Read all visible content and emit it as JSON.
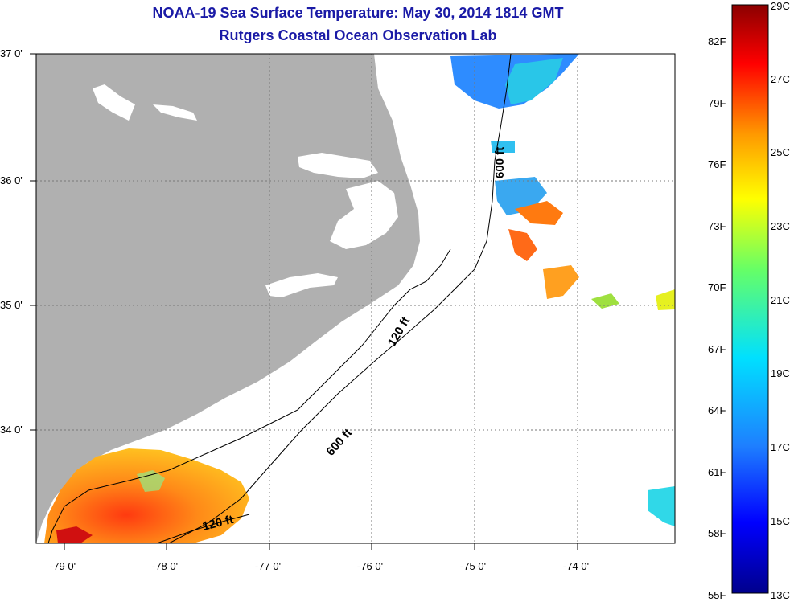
{
  "header": {
    "title": "NOAA-19 Sea Surface Temperature:  May 30, 2014 1814 GMT",
    "subtitle": "Rutgers Coastal Ocean Observation Lab"
  },
  "map": {
    "lat_labels": [
      "37 0'",
      "36 0'",
      "35 0'",
      "34 0'"
    ],
    "lon_labels": [
      "-79 0'",
      "-78 0'",
      "-77 0'",
      "-76 0'",
      "-75 0'",
      "-74 0'"
    ],
    "contour_labels": [
      "600 ft",
      "120 ft",
      "600 ft",
      "120 ft"
    ],
    "land_color": "#b0b0b0",
    "water_color": "#ffffff"
  },
  "colorbar": {
    "fahrenheit": [
      "82F",
      "79F",
      "76F",
      "73F",
      "70F",
      "67F",
      "64F",
      "61F",
      "58F",
      "55F"
    ],
    "celsius": [
      "29C",
      "27C",
      "25C",
      "23C",
      "21C",
      "19C",
      "17C",
      "15C",
      "13C"
    ],
    "gradient": [
      "#00008c",
      "#0000ff",
      "#1e7fff",
      "#00e0ff",
      "#66ff66",
      "#ffff00",
      "#ff9900",
      "#ff0000",
      "#8b0000"
    ]
  }
}
